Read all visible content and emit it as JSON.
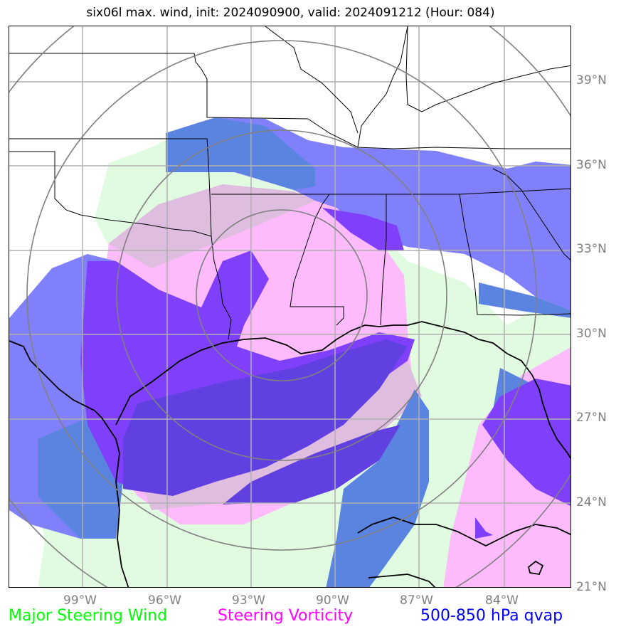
{
  "title": "six06l max. wind, init: 2024090900, valid: 2024091212 (Hour: 084)",
  "lat_labels": [
    "39°N",
    "36°N",
    "33°N",
    "30°N",
    "27°N",
    "24°N",
    "21°N"
  ],
  "lon_labels": [
    "99°W",
    "96°W",
    "93°W",
    "90°W",
    "87°W",
    "84°W"
  ],
  "legend": [
    {
      "label": "Major Steering Wind",
      "color": "#00ff00"
    },
    {
      "label": "Steering Vorticity",
      "color": "#ff00ff"
    },
    {
      "label": "500-850 hPa qvap",
      "color": "#0000ff"
    }
  ],
  "colors": {
    "wind": "#e0fbe0",
    "vorticity": "#fdbbfb",
    "vorticity_wind": "#dfbddf",
    "qvap": "#8080fb",
    "qvap_wind": "#5b83e0",
    "qvap_vorticity": "#8040fb",
    "qvap_all": "#6040e0",
    "grid": "#b0b0b0",
    "range_rings": "#808080",
    "coastline": "#000000"
  }
}
